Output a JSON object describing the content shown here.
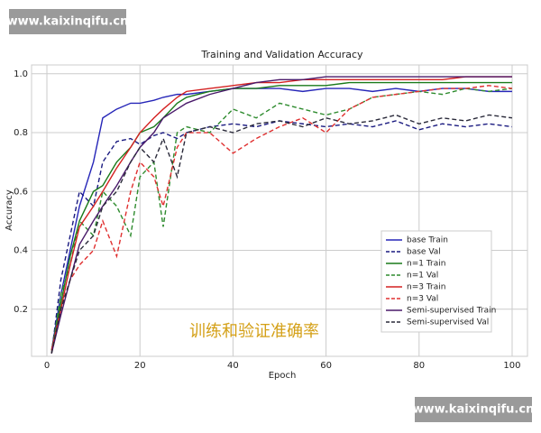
{
  "watermarks": [
    "www.kaixinqifu.cn",
    "www.kaixinqifu.cn"
  ],
  "chart_data": {
    "type": "line",
    "title": "Training and Validation Accuracy",
    "xlabel": "Epoch",
    "ylabel": "Accuracy",
    "annotation": "训练和验证准确率",
    "x": [
      1,
      3,
      5,
      7,
      10,
      12,
      15,
      18,
      20,
      23,
      25,
      28,
      30,
      35,
      40,
      45,
      50,
      55,
      60,
      65,
      70,
      75,
      80,
      85,
      90,
      95,
      100
    ],
    "xlim": [
      -3.3,
      103.3
    ],
    "xticks": [
      0,
      20,
      40,
      60,
      80,
      100
    ],
    "ylim": [
      0.04,
      1.03
    ],
    "yticks": [
      0.2,
      0.4,
      0.6,
      0.8,
      {
        "value": 1,
        "label": "1.0"
      }
    ],
    "grid": true,
    "legend": "lower right",
    "series": [
      {
        "name": "base Train",
        "color": "#2626b8",
        "linestyle": "solid",
        "values": [
          0.06,
          0.25,
          0.4,
          0.55,
          0.7,
          0.85,
          0.88,
          0.9,
          0.9,
          0.91,
          0.92,
          0.93,
          0.93,
          0.94,
          0.95,
          0.95,
          0.95,
          0.94,
          0.95,
          0.95,
          0.94,
          0.95,
          0.94,
          0.95,
          0.95,
          0.94,
          0.94
        ]
      },
      {
        "name": "base Val",
        "color": "#1a1a80",
        "linestyle": "dashed",
        "values": [
          0.05,
          0.3,
          0.45,
          0.6,
          0.55,
          0.7,
          0.77,
          0.78,
          0.76,
          0.79,
          0.8,
          0.78,
          0.8,
          0.82,
          0.83,
          0.82,
          0.84,
          0.83,
          0.82,
          0.83,
          0.82,
          0.84,
          0.81,
          0.83,
          0.82,
          0.83,
          0.82
        ]
      },
      {
        "name": "n=1 Train",
        "color": "#1a7a1a",
        "linestyle": "solid",
        "values": [
          0.06,
          0.22,
          0.38,
          0.5,
          0.6,
          0.62,
          0.7,
          0.75,
          0.8,
          0.82,
          0.85,
          0.9,
          0.92,
          0.94,
          0.95,
          0.95,
          0.96,
          0.96,
          0.96,
          0.97,
          0.97,
          0.97,
          0.97,
          0.97,
          0.97,
          0.97,
          0.97
        ]
      },
      {
        "name": "n=1 Val",
        "color": "#2e8b2e",
        "linestyle": "dashed",
        "values": [
          0.05,
          0.25,
          0.35,
          0.5,
          0.45,
          0.6,
          0.55,
          0.45,
          0.65,
          0.7,
          0.48,
          0.8,
          0.82,
          0.8,
          0.88,
          0.85,
          0.9,
          0.88,
          0.86,
          0.88,
          0.92,
          0.93,
          0.94,
          0.93,
          0.95,
          0.94,
          0.95
        ]
      },
      {
        "name": "n=3 Train",
        "color": "#d42020",
        "linestyle": "solid",
        "values": [
          0.06,
          0.2,
          0.35,
          0.48,
          0.55,
          0.6,
          0.68,
          0.75,
          0.8,
          0.85,
          0.88,
          0.92,
          0.94,
          0.95,
          0.96,
          0.97,
          0.97,
          0.98,
          0.98,
          0.98,
          0.98,
          0.98,
          0.98,
          0.98,
          0.99,
          0.99,
          0.99
        ]
      },
      {
        "name": "n=3 Val",
        "color": "#e03030",
        "linestyle": "dashed",
        "values": [
          0.05,
          0.2,
          0.3,
          0.35,
          0.4,
          0.5,
          0.38,
          0.6,
          0.7,
          0.65,
          0.55,
          0.75,
          0.8,
          0.8,
          0.73,
          0.78,
          0.82,
          0.85,
          0.8,
          0.88,
          0.92,
          0.93,
          0.94,
          0.95,
          0.95,
          0.96,
          0.95
        ]
      },
      {
        "name": "Semi-supervised Train",
        "color": "#4a1a6a",
        "linestyle": "solid",
        "values": [
          0.05,
          0.18,
          0.3,
          0.42,
          0.5,
          0.55,
          0.62,
          0.7,
          0.75,
          0.8,
          0.85,
          0.88,
          0.9,
          0.93,
          0.95,
          0.97,
          0.98,
          0.98,
          0.99,
          0.99,
          0.99,
          0.99,
          0.99,
          0.99,
          0.99,
          0.99,
          0.99
        ]
      },
      {
        "name": "Semi-supervised Val",
        "color": "#2a2a3a",
        "linestyle": "dashed",
        "values": [
          0.05,
          0.2,
          0.3,
          0.4,
          0.45,
          0.55,
          0.6,
          0.7,
          0.75,
          0.7,
          0.78,
          0.65,
          0.8,
          0.82,
          0.8,
          0.83,
          0.84,
          0.82,
          0.85,
          0.83,
          0.84,
          0.86,
          0.83,
          0.85,
          0.84,
          0.86,
          0.85
        ]
      }
    ]
  }
}
